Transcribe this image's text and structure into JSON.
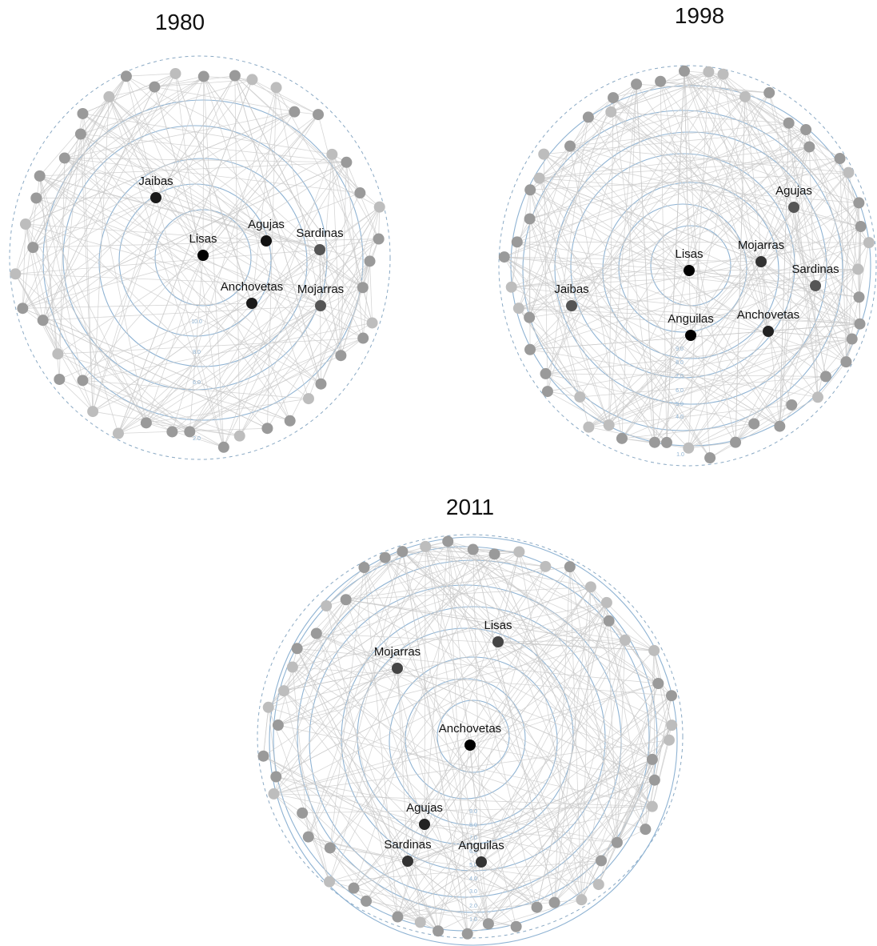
{
  "panels": [
    {
      "id": "1980",
      "title": "1980",
      "ticks": [
        "10.0",
        "8.0",
        "6.0",
        "2.0"
      ],
      "labeled_nodes": [
        {
          "name": "Jaibas",
          "shade": "#1a1a1a"
        },
        {
          "name": "Lisas",
          "shade": "#000000"
        },
        {
          "name": "Agujas",
          "shade": "#111111"
        },
        {
          "name": "Sardinas",
          "shade": "#555555"
        },
        {
          "name": "Anchovetas",
          "shade": "#1a1a1a"
        },
        {
          "name": "Mojarras",
          "shade": "#555555"
        }
      ]
    },
    {
      "id": "1998",
      "title": "1998",
      "ticks": [
        "9.0",
        "8.0",
        "7.0",
        "6.0",
        "5.0",
        "4.0",
        "1.0"
      ],
      "labeled_nodes": [
        {
          "name": "Agujas",
          "shade": "#555555"
        },
        {
          "name": "Lisas",
          "shade": "#000000"
        },
        {
          "name": "Mojarras",
          "shade": "#333333"
        },
        {
          "name": "Sardinas",
          "shade": "#555555"
        },
        {
          "name": "Jaibas",
          "shade": "#555555"
        },
        {
          "name": "Anguilas",
          "shade": "#000000"
        },
        {
          "name": "Anchovetas",
          "shade": "#222222"
        }
      ]
    },
    {
      "id": "2011",
      "title": "2011",
      "ticks": [
        "9.0",
        "8.0",
        "7.0",
        "6.0",
        "5.0",
        "4.0",
        "3.0",
        "2.0",
        "1.0"
      ],
      "labeled_nodes": [
        {
          "name": "Lisas",
          "shade": "#444444"
        },
        {
          "name": "Mojarras",
          "shade": "#444444"
        },
        {
          "name": "Anchovetas",
          "shade": "#000000"
        },
        {
          "name": "Agujas",
          "shade": "#222222"
        },
        {
          "name": "Sardinas",
          "shade": "#333333"
        },
        {
          "name": "Anguilas",
          "shade": "#333333"
        }
      ]
    }
  ],
  "colors": {
    "ring": "#8fb3d3",
    "edge": "#c9c9c9",
    "peripheral_node": "#9a9a9a",
    "outer_node": "#bdbdbd"
  }
}
